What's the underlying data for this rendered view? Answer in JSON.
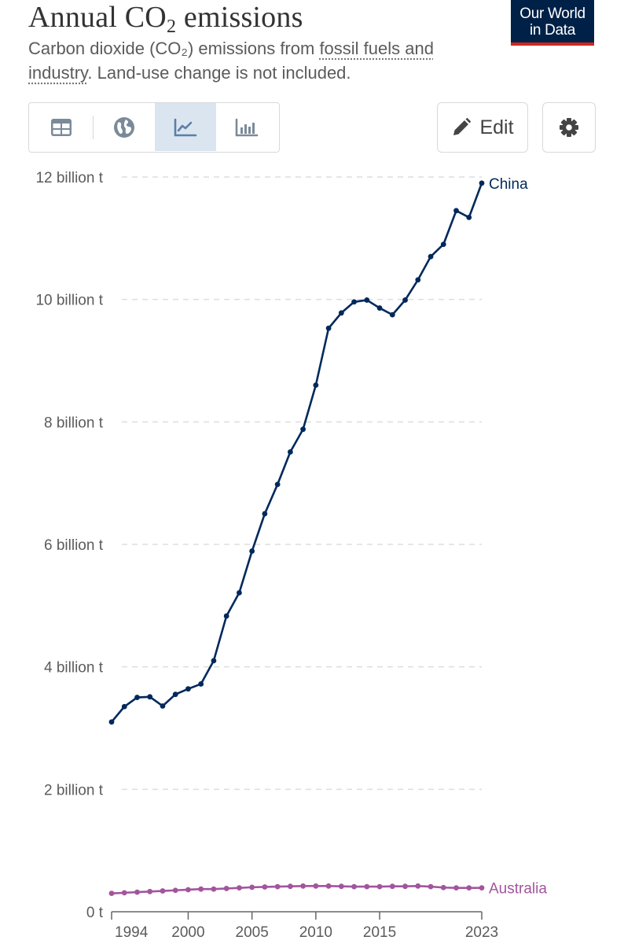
{
  "header": {
    "title_main": "Annual CO",
    "title_sub": "2",
    "title_end": " emissions",
    "subtitle_start": "Carbon dioxide (CO₂) emissions from ",
    "subtitle_term": "fossil fuels and industry",
    "subtitle_end": ". Land-use change is not included."
  },
  "logo": {
    "line1": "Our World",
    "line2": "in Data"
  },
  "toolbar": {
    "tabs": [
      {
        "icon": "table-icon"
      },
      {
        "icon": "globe-icon"
      },
      {
        "icon": "line-chart-icon",
        "active": true
      },
      {
        "icon": "bar-chart-icon"
      }
    ],
    "edit_label": "Edit",
    "settings_icon": "gear-icon"
  },
  "colors": {
    "china": "#00295b",
    "australia": "#a2559c",
    "grid": "#dddddd",
    "axis": "#666666"
  },
  "chart_data": {
    "type": "line",
    "title": "Annual CO₂ emissions",
    "xlim": [
      1994,
      2023
    ],
    "ylim": [
      0,
      12000000000
    ],
    "y_ticks": [
      {
        "value": 0,
        "label": "0 t"
      },
      {
        "value": 2000000000,
        "label": "2 billion t"
      },
      {
        "value": 4000000000,
        "label": "4 billion t"
      },
      {
        "value": 6000000000,
        "label": "6 billion t"
      },
      {
        "value": 8000000000,
        "label": "8 billion t"
      },
      {
        "value": 10000000000,
        "label": "10 billion t"
      },
      {
        "value": 12000000000,
        "label": "12 billion t"
      }
    ],
    "x_ticks": [
      {
        "value": 1994,
        "label": "1994"
      },
      {
        "value": 2000,
        "label": "2000"
      },
      {
        "value": 2005,
        "label": "2005"
      },
      {
        "value": 2010,
        "label": "2010"
      },
      {
        "value": 2015,
        "label": "2015"
      },
      {
        "value": 2023,
        "label": "2023"
      }
    ],
    "grid": "horizontal dashed",
    "x": [
      1994,
      1995,
      1996,
      1997,
      1998,
      1999,
      2000,
      2001,
      2002,
      2003,
      2004,
      2005,
      2006,
      2007,
      2008,
      2009,
      2010,
      2011,
      2012,
      2013,
      2014,
      2015,
      2016,
      2017,
      2018,
      2019,
      2020,
      2021,
      2022,
      2023
    ],
    "series": [
      {
        "name": "China",
        "values": [
          3100000000,
          3350000000,
          3500000000,
          3510000000,
          3360000000,
          3550000000,
          3640000000,
          3720000000,
          4100000000,
          4830000000,
          5210000000,
          5890000000,
          6500000000,
          6980000000,
          7510000000,
          7880000000,
          8600000000,
          9530000000,
          9780000000,
          9960000000,
          9990000000,
          9860000000,
          9750000000,
          9990000000,
          10320000000,
          10700000000,
          10900000000,
          11450000000,
          11340000000,
          11900000000
        ]
      },
      {
        "name": "Australia",
        "values": [
          300000000,
          310000000,
          320000000,
          330000000,
          340000000,
          350000000,
          360000000,
          370000000,
          370000000,
          380000000,
          390000000,
          400000000,
          405000000,
          410000000,
          415000000,
          420000000,
          420000000,
          420000000,
          415000000,
          410000000,
          410000000,
          410000000,
          415000000,
          415000000,
          420000000,
          410000000,
          395000000,
          390000000,
          390000000,
          390000000
        ]
      }
    ]
  }
}
